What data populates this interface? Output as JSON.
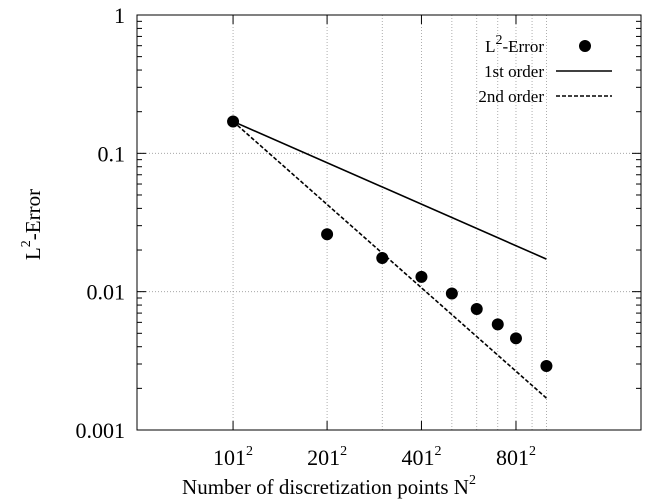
{
  "chart_data": {
    "type": "scatter",
    "xlabel": "Number of discretization points N",
    "xlabel_sup": "2",
    "ylabel": "L",
    "ylabel_sup": "2",
    "ylabel_rest": "-Error",
    "xscale": "log",
    "yscale": "log",
    "xlim": [
      50,
      2000
    ],
    "ylim": [
      0.001,
      1
    ],
    "x_ticks": [
      {
        "value": 101,
        "label": "101",
        "sup": "2"
      },
      {
        "value": 201,
        "label": "201",
        "sup": "2"
      },
      {
        "value": 401,
        "label": "401",
        "sup": "2"
      },
      {
        "value": 801,
        "label": "801",
        "sup": "2"
      }
    ],
    "y_ticks": [
      {
        "value": 0.001,
        "label": "0.001"
      },
      {
        "value": 0.01,
        "label": "0.01"
      },
      {
        "value": 0.1,
        "label": "0.1"
      },
      {
        "value": 1,
        "label": "1"
      }
    ],
    "x_grid": [
      101,
      201,
      301,
      401,
      501,
      601,
      701,
      801,
      901,
      1001
    ],
    "grid": true,
    "legend_position": "top-right",
    "series": [
      {
        "name": "L",
        "name_sup": "2",
        "name_rest": "-Error",
        "kind": "points",
        "x": [
          101,
          201,
          301,
          401,
          501,
          601,
          701,
          801,
          1001
        ],
        "y": [
          0.17,
          0.026,
          0.0175,
          0.0128,
          0.0097,
          0.0075,
          0.0058,
          0.0046,
          0.0029
        ]
      },
      {
        "name": "1st order",
        "kind": "solid-line",
        "x": [
          101,
          1001
        ],
        "y": [
          0.17,
          0.0172
        ]
      },
      {
        "name": "2nd order",
        "kind": "dashed-line",
        "x": [
          101,
          1001
        ],
        "y": [
          0.17,
          0.0017
        ]
      }
    ]
  }
}
